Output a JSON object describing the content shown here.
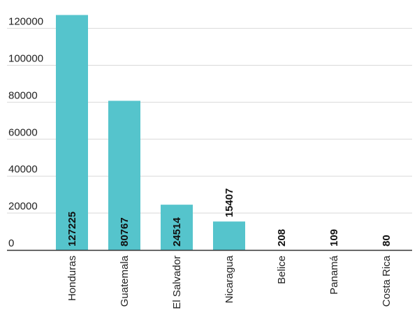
{
  "chart_data": {
    "type": "bar",
    "title": "",
    "xlabel": "",
    "ylabel": "",
    "categories": [
      "Honduras",
      "Guatemala",
      "El Salvador",
      "Nicaragua",
      "Belice",
      "Panamá",
      "Costa Rica"
    ],
    "values": [
      127225,
      80767,
      24514,
      15407,
      208,
      109,
      80
    ],
    "data_labels": [
      "127225",
      "80767",
      "24514",
      "15407",
      "208",
      "109",
      "80"
    ],
    "ylim": [
      0,
      120000
    ],
    "yticks": [
      0,
      20000,
      40000,
      60000,
      80000,
      100000,
      120000
    ],
    "ytick_labels": [
      "0",
      "20000",
      "40000",
      "60000",
      "80000",
      "100000",
      "120000"
    ],
    "grid": true,
    "legend": "none",
    "colors": {
      "bar": "#55c4cc",
      "grid": "#d9d9d9",
      "axis": "#333333",
      "text": "#222222"
    }
  }
}
